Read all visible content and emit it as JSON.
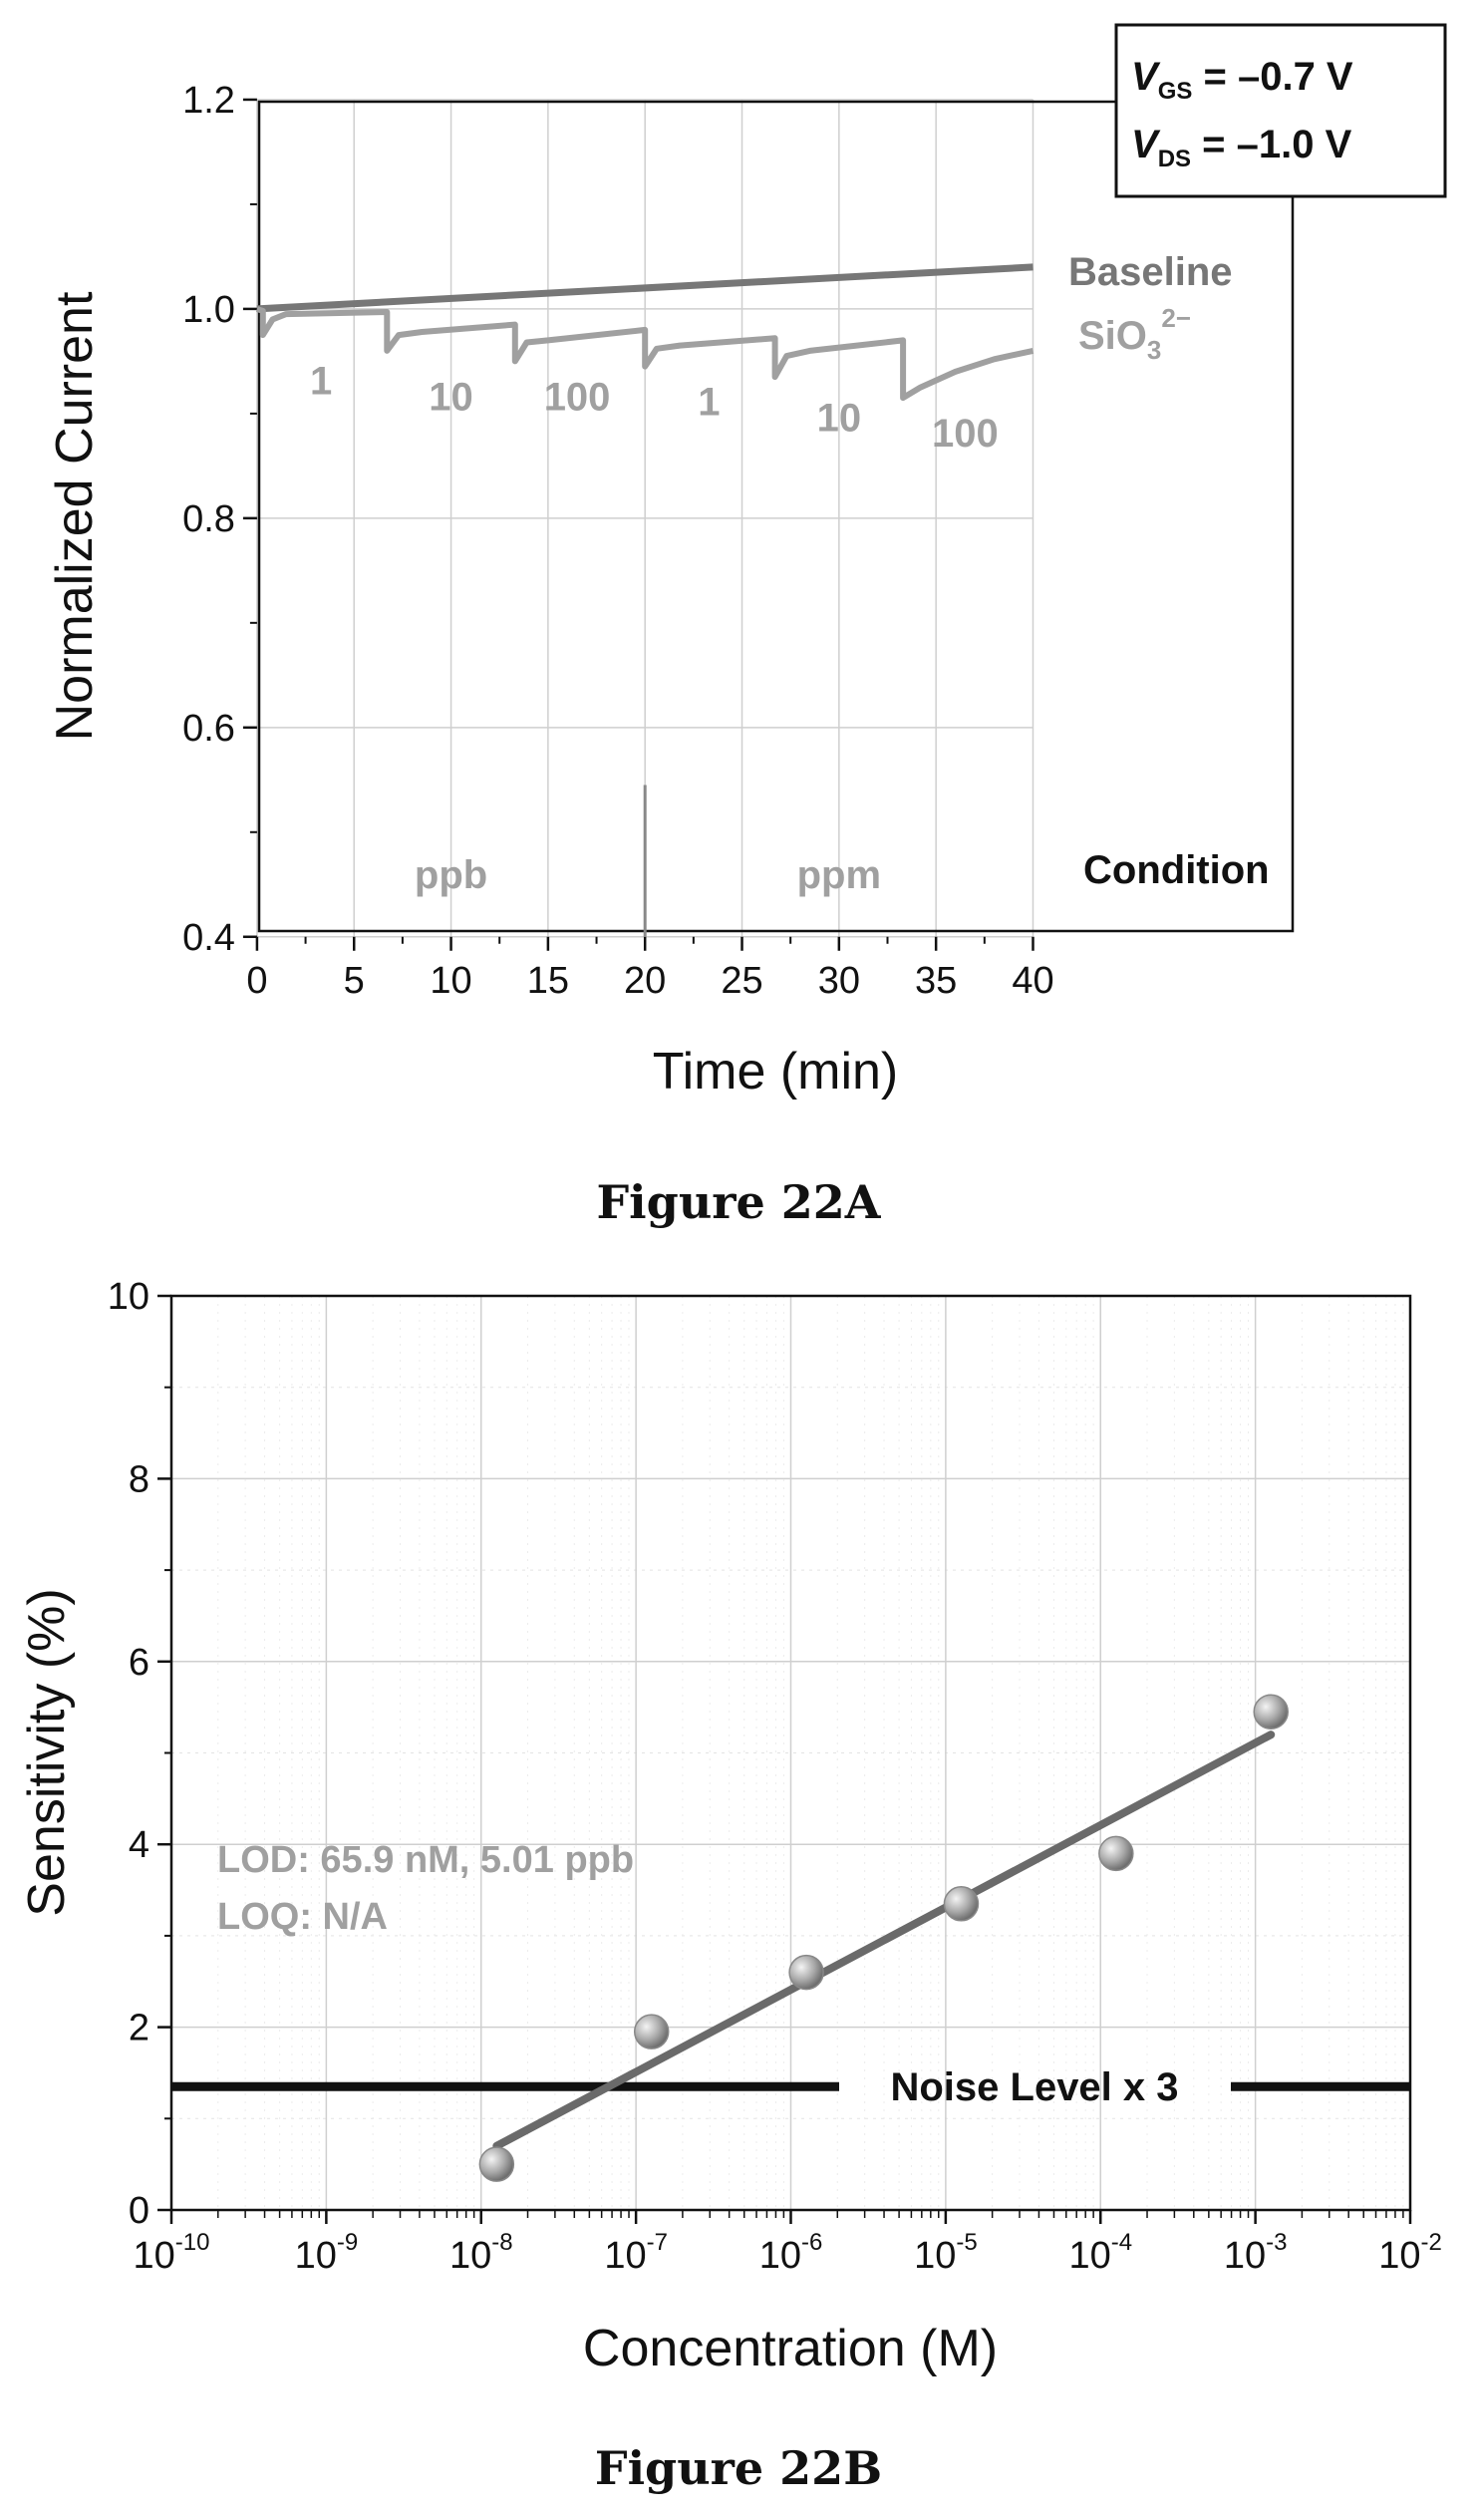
{
  "chart_data": [
    {
      "type": "line",
      "caption": "Figure 22A",
      "xlabel": "Time (min)",
      "ylabel": "Normalized Current",
      "xlim": [
        0,
        40
      ],
      "ylim": [
        0.4,
        1.2
      ],
      "xticks": [
        0,
        5,
        10,
        15,
        20,
        25,
        30,
        35,
        40
      ],
      "yticks": [
        0.4,
        0.6,
        0.8,
        1.0,
        1.2
      ],
      "xtick_labels": [
        "0",
        "5",
        "10",
        "15",
        "20",
        "25",
        "30",
        "35",
        "40"
      ],
      "ytick_labels": [
        "0.4",
        "0.6",
        "0.8",
        "1.0",
        "1.2"
      ],
      "grid": true,
      "condition_box": {
        "vgs_symbol": "V",
        "vgs_sub": "GS",
        "vgs_value": " = –0.7 V",
        "vds_symbol": "V",
        "vds_sub": "DS",
        "vds_value": " = –1.0 V"
      },
      "condition_label": "Condition",
      "region_labels": [
        {
          "text": "ppb",
          "x": 10,
          "y": 0.46
        },
        {
          "text": "ppm",
          "x": 30,
          "y": 0.46
        }
      ],
      "region_divider_x": 20,
      "concentration_labels": [
        {
          "text": "1",
          "x": 3.3,
          "y": 0.945
        },
        {
          "text": "10",
          "x": 10,
          "y": 0.93
        },
        {
          "text": "100",
          "x": 16.5,
          "y": 0.93
        },
        {
          "text": "1",
          "x": 23.3,
          "y": 0.925
        },
        {
          "text": "10",
          "x": 30,
          "y": 0.91
        },
        {
          "text": "100",
          "x": 36.5,
          "y": 0.895
        }
      ],
      "series": [
        {
          "name": "Baseline",
          "color": "#777777",
          "x": [
            0,
            40
          ],
          "y": [
            1.0,
            1.04
          ]
        },
        {
          "name": "SiO3 2−",
          "name_main": "SiO",
          "name_sub": "3",
          "name_sup": "2−",
          "color": "#a0a0a0",
          "x": [
            0,
            0.3,
            0.3,
            0.8,
            1.5,
            6.7,
            6.7,
            7.3,
            8.5,
            13.3,
            13.3,
            13.9,
            15,
            20,
            20,
            20.6,
            21.8,
            26.7,
            26.7,
            27.3,
            28.5,
            33.3,
            33.3,
            34.2,
            36,
            38,
            40
          ],
          "y": [
            1.0,
            0.998,
            0.975,
            0.99,
            0.995,
            0.997,
            0.96,
            0.975,
            0.978,
            0.985,
            0.95,
            0.968,
            0.97,
            0.98,
            0.945,
            0.962,
            0.965,
            0.972,
            0.935,
            0.955,
            0.96,
            0.97,
            0.915,
            0.925,
            0.94,
            0.952,
            0.96
          ]
        }
      ]
    },
    {
      "type": "scatter",
      "caption": "Figure 22B",
      "xlabel": "Concentration (M)",
      "ylabel": "Sensitivity (%)",
      "xscale": "log",
      "xlim": [
        1e-10,
        0.01
      ],
      "ylim": [
        0,
        10
      ],
      "xticks_exp": [
        -10,
        -9,
        -8,
        -7,
        -6,
        -5,
        -4,
        -3,
        -2
      ],
      "xtick_base": "10",
      "xtick_exps": [
        "-10",
        "-9",
        "-8",
        "-7",
        "-6",
        "-5",
        "-4",
        "-3",
        "-2"
      ],
      "yticks": [
        0,
        2,
        4,
        6,
        8,
        10
      ],
      "ytick_labels": [
        "0",
        "2",
        "4",
        "6",
        "8",
        "10"
      ],
      "grid": true,
      "points": {
        "x": [
          1.26e-08,
          1.26e-07,
          1.26e-06,
          1.26e-05,
          0.000126,
          0.00126
        ],
        "y": [
          0.5,
          1.95,
          2.6,
          3.35,
          3.9,
          5.45
        ]
      },
      "fit_line": {
        "x": [
          1.26e-08,
          0.00126
        ],
        "y": [
          0.7,
          5.2
        ]
      },
      "noise_level": {
        "y": 1.35,
        "label": "Noise Level x 3"
      },
      "annotations": [
        "LOD: 65.9 nM, 5.01 ppb",
        "LOQ: N/A"
      ]
    }
  ]
}
